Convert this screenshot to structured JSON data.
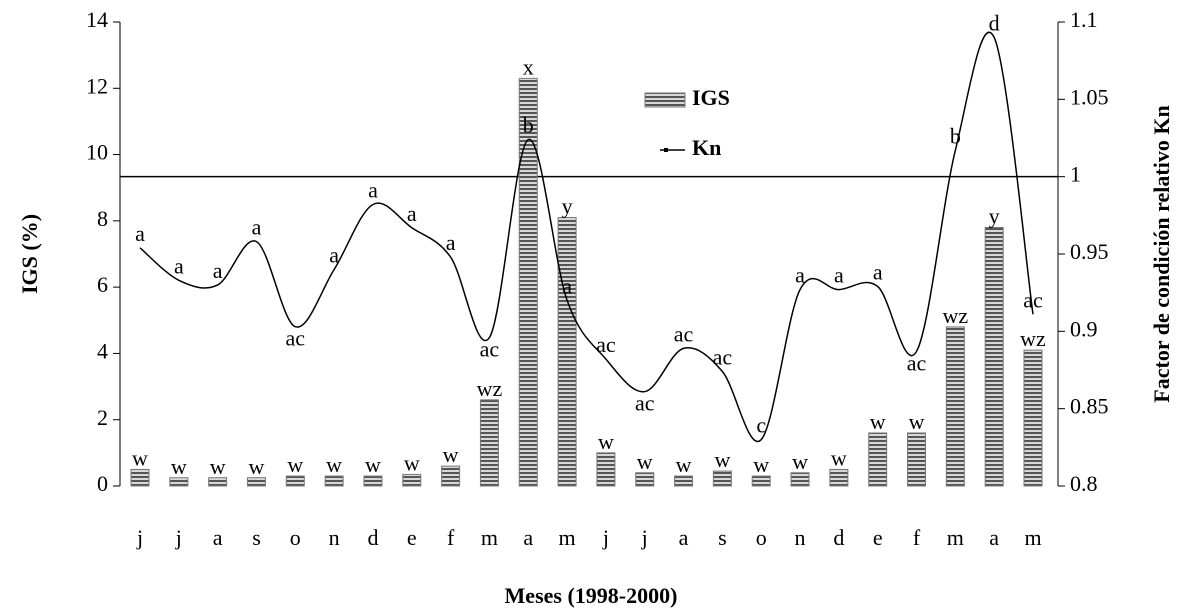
{
  "chart_data": {
    "type": "bar-line",
    "xlabel": "Meses (1998-2000)",
    "ylabel": "IGS (%)",
    "y2label": "Factor de condición relativo Kn",
    "categories": [
      "j",
      "j",
      "a",
      "s",
      "o",
      "n",
      "d",
      "e",
      "f",
      "m",
      "a",
      "m",
      "j",
      "j",
      "a",
      "s",
      "o",
      "n",
      "d",
      "e",
      "f",
      "m",
      "a",
      "m"
    ],
    "series": [
      {
        "name": "IGS",
        "type": "bar",
        "color": "#777777",
        "axis": "y",
        "values": [
          0.5,
          0.25,
          0.25,
          0.25,
          0.3,
          0.3,
          0.3,
          0.35,
          0.6,
          2.6,
          12.3,
          8.1,
          1.0,
          0.4,
          0.3,
          0.45,
          0.3,
          0.4,
          0.5,
          1.6,
          1.6,
          4.8,
          7.8,
          4.1
        ],
        "annotations": [
          "w",
          "w",
          "w",
          "w",
          "w",
          "w",
          "w",
          "w",
          "w",
          "wz",
          "x",
          "y",
          "w",
          "w",
          "w",
          "w",
          "w",
          "w",
          "w",
          "w",
          "w",
          "wz",
          "y",
          "wz"
        ]
      },
      {
        "name": "Kn",
        "type": "line",
        "color": "#000000",
        "axis": "y2",
        "values": [
          0.954,
          0.933,
          0.93,
          0.958,
          0.903,
          0.94,
          0.982,
          0.967,
          0.948,
          0.896,
          1.024,
          0.92,
          0.882,
          0.861,
          0.889,
          0.874,
          0.83,
          0.927,
          0.927,
          0.929,
          0.887,
          1.017,
          1.09,
          0.911
        ],
        "annotations": [
          "a",
          "a",
          "a",
          "a",
          "ac",
          "a",
          "a",
          "a",
          "a",
          "ac",
          "b",
          "a",
          "ac",
          "ac",
          "ac",
          "ac",
          "c",
          "a",
          "a",
          "a",
          "ac",
          "b",
          "d",
          "ac"
        ]
      }
    ],
    "ylim": [
      0,
      14
    ],
    "yticks": [
      0,
      2,
      4,
      6,
      8,
      10,
      12,
      14
    ],
    "y2lim": [
      0.8,
      1.1
    ],
    "y2ticks": [
      0.8,
      0.85,
      0.9,
      0.95,
      1,
      1.05,
      1.1
    ],
    "reference_line": 1,
    "grid": false
  }
}
